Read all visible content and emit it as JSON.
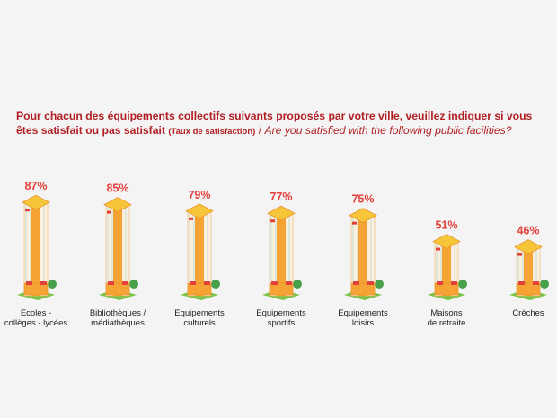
{
  "title": {
    "fr_main": "Pour chacun des équipements collectifs suivants proposés par votre ville, veuillez indiquer si vous êtes satisfait ou pas satisfait",
    "fr_note": "(Taux de satisfaction)",
    "separator": "/",
    "en": "Are you satisfied with the following public facilities?"
  },
  "colors": {
    "title": "#b01f24",
    "value_label": "#e2403a",
    "bar_main": "#f5a334",
    "bar_cap": "#f7c53a",
    "bar_cap_edge": "#e8932a",
    "bar_red": "#e2403a",
    "bar_stripe": "#9fd3c4",
    "base_green": "#7cc34a",
    "ball_green": "#49a04a"
  },
  "chart_data": {
    "type": "bar",
    "categories": [
      [
        "Ecoles -",
        "collèges - lycées"
      ],
      [
        "Bibliothèques /",
        "médiathèques"
      ],
      [
        "Equipements",
        "culturels"
      ],
      [
        "Equipements",
        "sportifs"
      ],
      [
        "Equipements",
        "loisirs"
      ],
      [
        "Maisons",
        "de retraite"
      ],
      [
        "Crèches"
      ]
    ],
    "values": [
      87,
      85,
      79,
      77,
      75,
      51,
      46
    ],
    "value_labels": [
      "87%",
      "85%",
      "79%",
      "77%",
      "75%",
      "51%",
      "46%"
    ],
    "unit": "%",
    "ylim": [
      0,
      100
    ]
  }
}
